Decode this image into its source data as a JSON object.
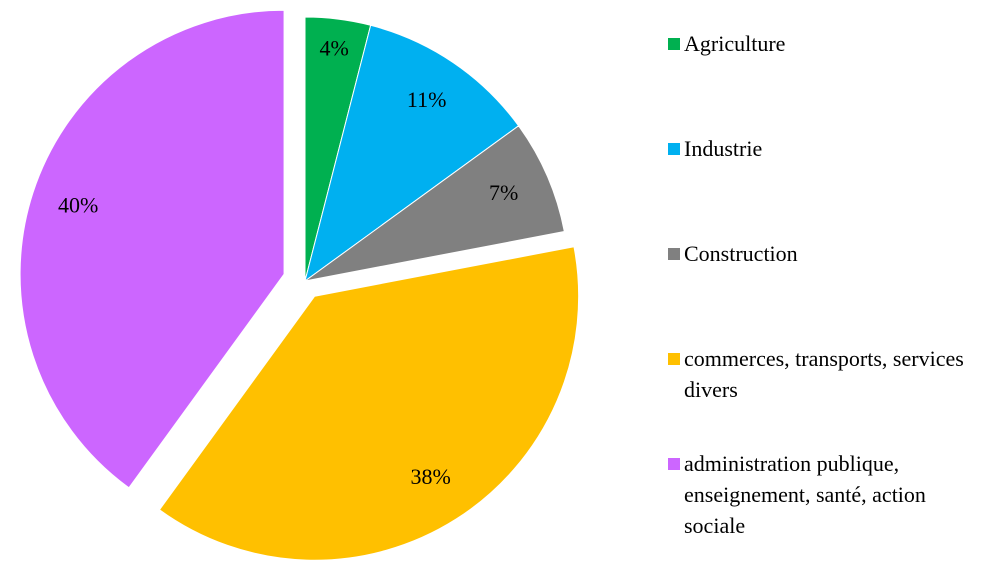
{
  "chart_data": {
    "type": "pie",
    "categories": [
      "Agriculture",
      "Industrie",
      "Construction",
      "commerces, transports, services divers",
      "administration publique, enseignement, santé, action sociale"
    ],
    "values": [
      4,
      11,
      7,
      38,
      40
    ],
    "value_labels": [
      "4%",
      "11%",
      "7%",
      "38%",
      "40%"
    ],
    "colors": [
      "#00b050",
      "#00b0f0",
      "#808080",
      "#ffc000",
      "#cc66ff"
    ],
    "legend": "right"
  }
}
